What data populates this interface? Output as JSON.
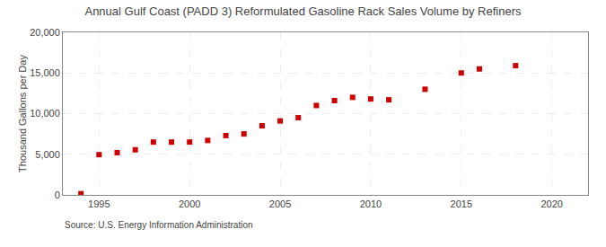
{
  "chart_data": {
    "type": "scatter",
    "title": "Annual Gulf Coast (PADD 3) Reformulated Gasoline Rack Sales Volume by Refiners",
    "ylabel": "Thousand Gallons per Day",
    "source": "Source: U.S. Energy Information Administration",
    "x": [
      1994,
      1995,
      1996,
      1997,
      1998,
      1999,
      2000,
      2001,
      2002,
      2003,
      2004,
      2005,
      2006,
      2007,
      2008,
      2009,
      2010,
      2011,
      2013,
      2015,
      2016,
      2018
    ],
    "values": [
      150,
      4950,
      5200,
      5550,
      6500,
      6500,
      6500,
      6700,
      7300,
      7500,
      8500,
      9100,
      9500,
      11000,
      11600,
      12000,
      11800,
      11700,
      13000,
      15000,
      15500,
      15900
    ],
    "color": "#cc0000",
    "marker": "square",
    "xlim": [
      1993,
      2022
    ],
    "ylim": [
      0,
      20000
    ],
    "xticks": [
      1995,
      2000,
      2005,
      2010,
      2015,
      2020
    ],
    "yticks": [
      0,
      {
        "value": 5000,
        "label": "5,000"
      },
      {
        "value": 10000,
        "label": "10,000"
      },
      {
        "value": 15000,
        "label": "15,000"
      },
      {
        "value": 20000,
        "label": "20,000"
      }
    ],
    "grid": true
  }
}
